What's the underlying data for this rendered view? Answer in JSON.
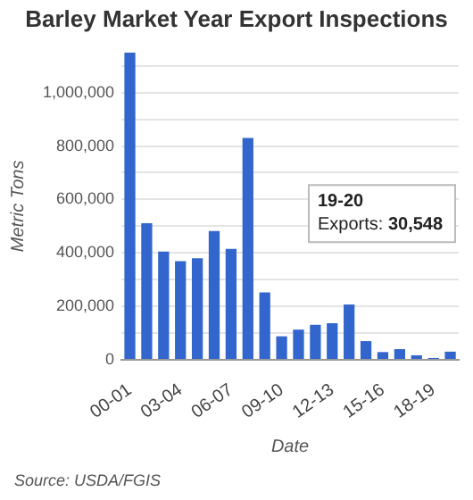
{
  "chart_data": {
    "type": "bar",
    "title": "Barley Market Year Export Inspections",
    "xlabel": "Date",
    "ylabel": "Metric Tons",
    "categories": [
      "00-01",
      null,
      null,
      "03-04",
      null,
      null,
      "06-07",
      null,
      null,
      "09-10",
      null,
      null,
      "12-13",
      null,
      null,
      "15-16",
      null,
      null,
      "18-19",
      null
    ],
    "values": [
      1150000,
      511000,
      405000,
      369000,
      380000,
      482000,
      415000,
      830000,
      252000,
      88000,
      113000,
      131000,
      137000,
      207000,
      70000,
      29000,
      40000,
      17000,
      7000,
      30548
    ],
    "color": "#3366cc",
    "ylim": [
      0,
      1150000
    ],
    "yticks": [
      0,
      {
        "value": 100000,
        "label": null
      },
      {
        "value": 200000,
        "label": "200,000"
      },
      {
        "value": 300000,
        "label": null
      },
      {
        "value": 400000,
        "label": "400,000"
      },
      {
        "value": 500000,
        "label": null
      },
      {
        "value": 600000,
        "label": "600,000"
      },
      {
        "value": 700000,
        "label": null
      },
      {
        "value": 800000,
        "label": "800,000"
      },
      {
        "value": 900000,
        "label": null
      },
      {
        "value": 1000000,
        "label": "1,000,000"
      },
      {
        "value": 1100000,
        "label": null
      }
    ],
    "grid": "y",
    "legend": false,
    "annotations": [
      "19-20\nExports: 30,548",
      "Source: USDA/FGIS"
    ]
  }
}
